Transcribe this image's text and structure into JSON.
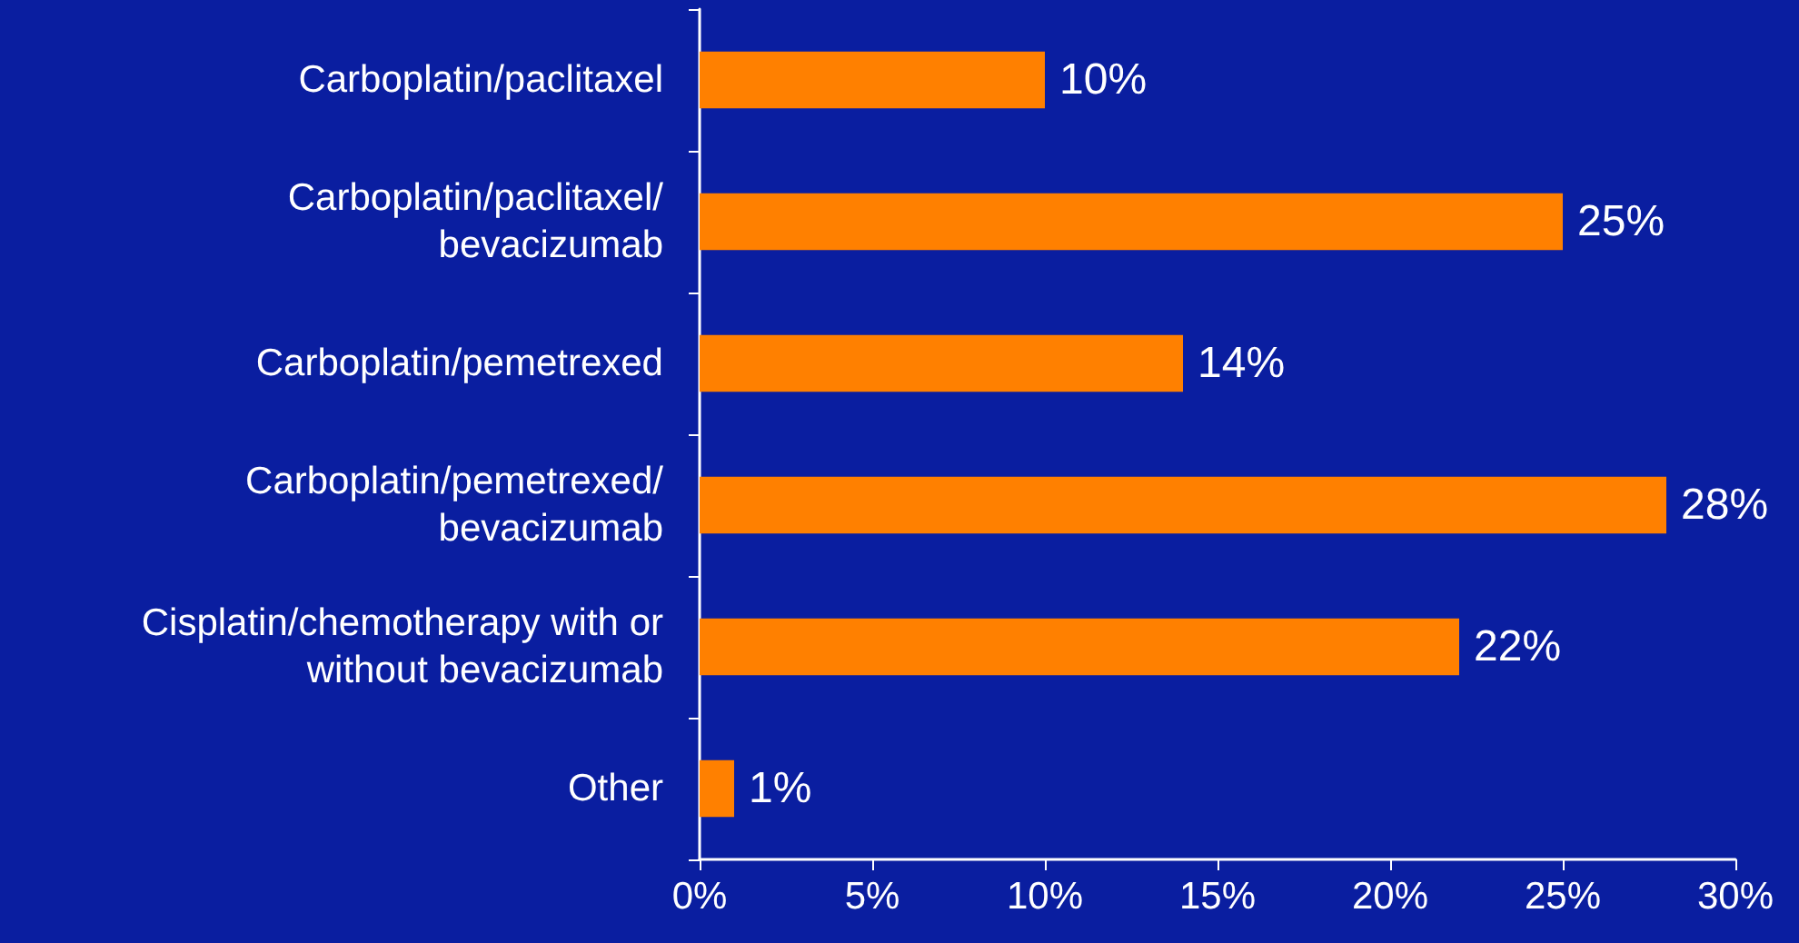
{
  "chart_data": {
    "type": "bar",
    "orientation": "horizontal",
    "categories": [
      "Carboplatin/paclitaxel",
      "Carboplatin/paclitaxel/\nbevacizumab",
      "Carboplatin/pemetrexed",
      "Carboplatin/pemetrexed/\nbevacizumab",
      "Cisplatin/chemotherapy with or\nwithout bevacizumab",
      "Other"
    ],
    "values": [
      10,
      25,
      14,
      28,
      22,
      1
    ],
    "value_labels": [
      "10%",
      "25%",
      "14%",
      "28%",
      "22%",
      "1%"
    ],
    "color": "#ff8000",
    "xlim": [
      0,
      30
    ],
    "xticks": [
      {
        "value": 0,
        "label": "0%"
      },
      {
        "value": 5,
        "label": "5%"
      },
      {
        "value": 10,
        "label": "10%"
      },
      {
        "value": 15,
        "label": "15%"
      },
      {
        "value": 20,
        "label": "20%"
      },
      {
        "value": 25,
        "label": "25%"
      },
      {
        "value": 30,
        "label": "30%"
      }
    ],
    "grid": false
  }
}
